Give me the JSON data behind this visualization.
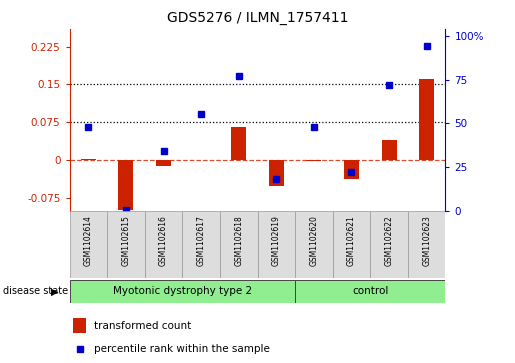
{
  "title": "GDS5276 / ILMN_1757411",
  "samples": [
    "GSM1102614",
    "GSM1102615",
    "GSM1102616",
    "GSM1102617",
    "GSM1102618",
    "GSM1102619",
    "GSM1102620",
    "GSM1102621",
    "GSM1102622",
    "GSM1102623"
  ],
  "transformed_count": [
    0.002,
    -0.098,
    -0.012,
    0.001,
    0.065,
    -0.052,
    -0.002,
    -0.038,
    0.04,
    0.16
  ],
  "percentile_rank": [
    0.48,
    0.005,
    0.34,
    0.555,
    0.77,
    0.18,
    0.48,
    0.22,
    0.72,
    0.945
  ],
  "disease_groups": [
    {
      "label": "Myotonic dystrophy type 2",
      "start": 0,
      "end": 6,
      "color": "#90ee90"
    },
    {
      "label": "control",
      "start": 6,
      "end": 10,
      "color": "#90ee90"
    }
  ],
  "bar_color": "#cc2200",
  "dot_color": "#0000cc",
  "ylim_left": [
    -0.1,
    0.26
  ],
  "ylim_right": [
    0.0,
    1.04
  ],
  "yticks_left": [
    -0.075,
    0.0,
    0.075,
    0.15,
    0.225
  ],
  "yticks_right": [
    0.0,
    0.25,
    0.5,
    0.75,
    1.0
  ],
  "ytick_labels_left": [
    "-0.075",
    "0",
    "0.075",
    "0.15",
    "0.225"
  ],
  "ytick_labels_right": [
    "0",
    "25",
    "50",
    "75",
    "100%"
  ],
  "dotted_lines": [
    0.075,
    0.15
  ],
  "bg_color": "#dddddd",
  "plot_bg": "#ffffff",
  "label_transformed": "transformed count",
  "label_percentile": "percentile rank within the sample"
}
